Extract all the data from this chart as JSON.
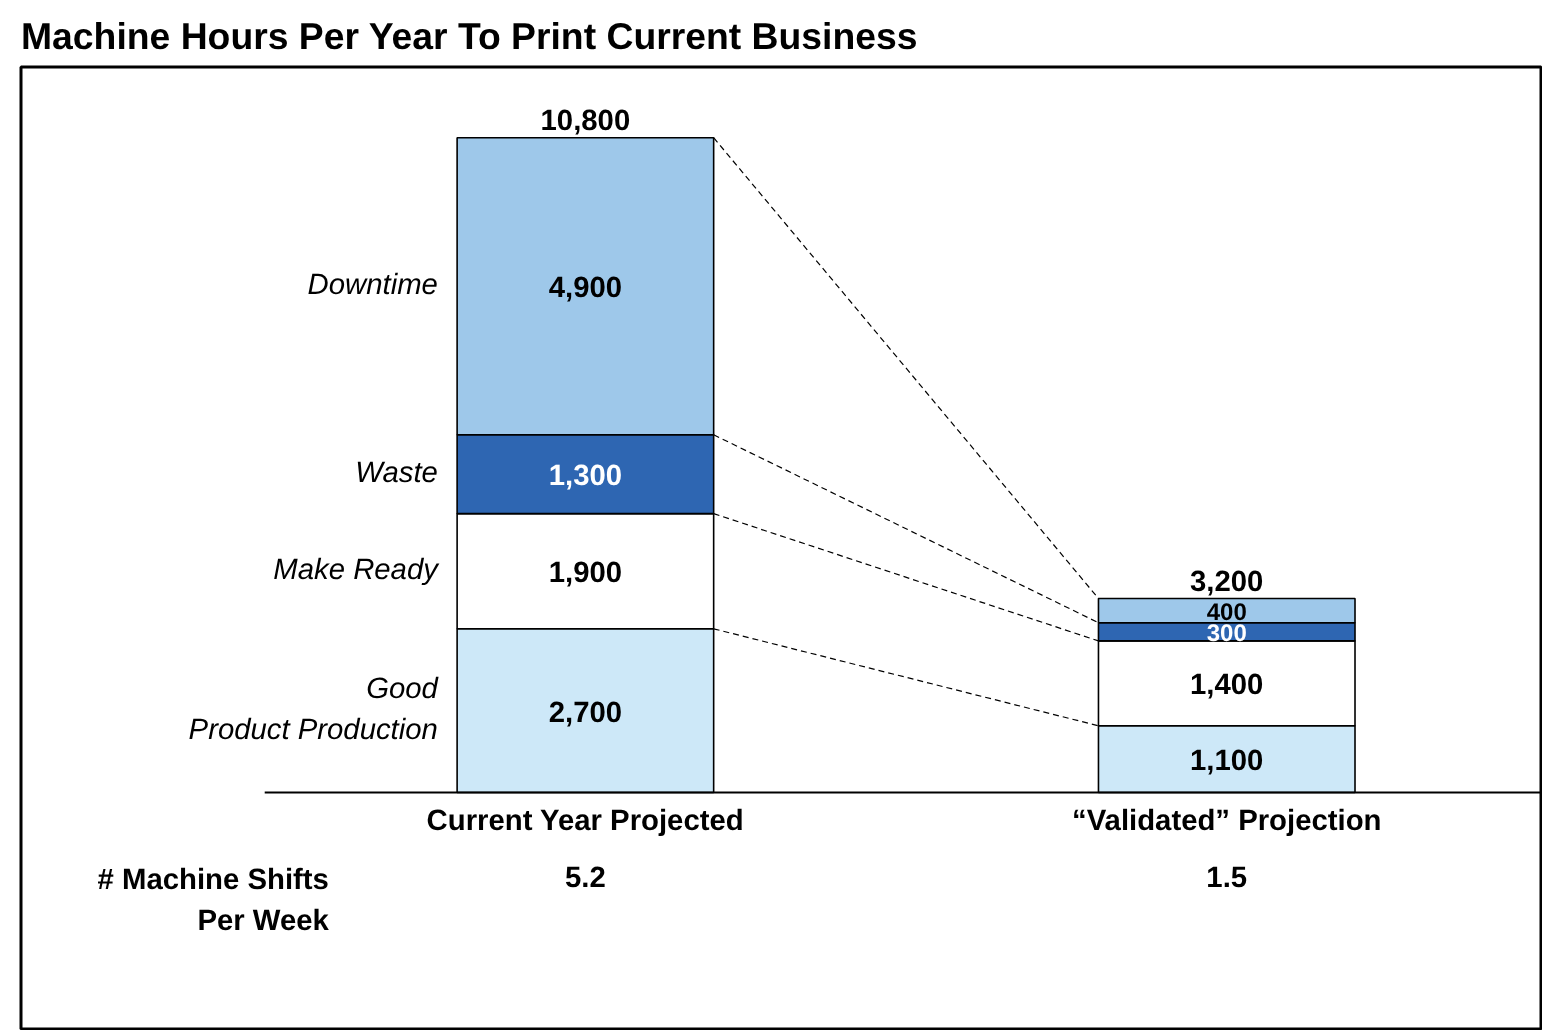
{
  "chart_data": {
    "type": "bar",
    "stacked": true,
    "title": "Machine Hours Per Year To Print Current Business",
    "categories": [
      "Current Year Projected",
      "“Validated” Projection"
    ],
    "series": [
      {
        "name": "Good Product Production",
        "color": "#cde8f8",
        "values": [
          2700,
          1100
        ],
        "value_labels": [
          "2,700",
          "1,100"
        ]
      },
      {
        "name": "Make Ready",
        "color": "#ffffff",
        "values": [
          1900,
          1400
        ],
        "value_labels": [
          "1,900",
          "1,400"
        ]
      },
      {
        "name": "Waste",
        "color": "#2e66b2",
        "values": [
          1300,
          300
        ],
        "value_labels": [
          "1,300",
          "300"
        ]
      },
      {
        "name": "Downtime",
        "color": "#9ec8ea",
        "values": [
          4900,
          400
        ],
        "value_labels": [
          "4,900",
          "400"
        ]
      }
    ],
    "totals": [
      "10,800",
      "3,200"
    ],
    "annotations": [
      "# Machine Shifts\nPer Week",
      "5.2",
      "1.5"
    ],
    "legend": "left",
    "grid": false
  }
}
